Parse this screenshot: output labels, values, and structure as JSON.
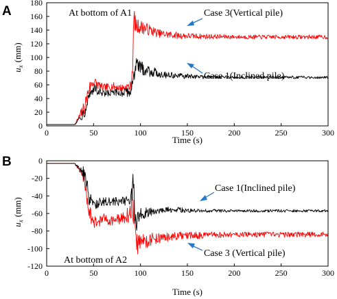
{
  "panels": [
    {
      "letter": "A"
    },
    {
      "letter": "B"
    }
  ],
  "chart_data": [
    {
      "type": "line",
      "title": "",
      "xlabel": "Time (s)",
      "ylabel_italic": "u",
      "ylabel_sub": "x",
      "ylabel_unit": "(mm)",
      "xlim": [
        0,
        300
      ],
      "ylim": [
        0,
        180
      ],
      "xticks": [
        0,
        50,
        100,
        150,
        200,
        250,
        300
      ],
      "yticks": [
        0,
        20,
        40,
        60,
        80,
        100,
        120,
        140,
        160,
        180
      ],
      "grid": false,
      "annotations": {
        "location": "At bottom of A1",
        "case_red": "Case 3(Vertical pile)",
        "case_black": "Case 1(Inclined pile)"
      },
      "series": [
        {
          "name": "Case 3(Vertical pile)",
          "color": "#ff0000",
          "x": [
            0,
            30,
            40,
            45,
            50,
            60,
            70,
            80,
            90,
            92,
            93,
            95,
            100,
            110,
            120,
            140,
            160,
            200,
            250,
            300
          ],
          "y": [
            2,
            2,
            25,
            55,
            65,
            55,
            58,
            55,
            58,
            100,
            160,
            145,
            145,
            140,
            135,
            132,
            131,
            130,
            130,
            130
          ],
          "noise": [
            0,
            0,
            12,
            10,
            8,
            6,
            6,
            6,
            8,
            15,
            14,
            12,
            10,
            8,
            6,
            5,
            4,
            3,
            3,
            3
          ]
        },
        {
          "name": "Case 1(Inclined pile)",
          "color": "#000000",
          "x": [
            0,
            30,
            40,
            45,
            50,
            60,
            70,
            80,
            90,
            92,
            95,
            100,
            110,
            120,
            140,
            160,
            200,
            250,
            300
          ],
          "y": [
            2,
            2,
            20,
            45,
            55,
            45,
            48,
            48,
            50,
            70,
            88,
            85,
            80,
            76,
            73,
            72,
            71,
            71,
            71
          ],
          "noise": [
            0,
            0,
            10,
            10,
            8,
            7,
            6,
            6,
            7,
            12,
            12,
            10,
            8,
            6,
            4,
            3,
            2,
            2,
            2
          ]
        }
      ]
    },
    {
      "type": "line",
      "title": "",
      "xlabel": "Time (s)",
      "ylabel_italic": "u",
      "ylabel_sub": "x",
      "ylabel_unit": "(mm)",
      "xlim": [
        0,
        300
      ],
      "ylim": [
        -120,
        0
      ],
      "xticks": [
        0,
        50,
        100,
        150,
        200,
        250,
        300
      ],
      "yticks": [
        -120,
        -100,
        -80,
        -60,
        -40,
        -20,
        0
      ],
      "grid": false,
      "annotations": {
        "location": "At bottom of A2",
        "case_black": "Case 1(Inclined pile)",
        "case_red": "Case 3 (Vertical pile)"
      },
      "series": [
        {
          "name": "Case 3 (Vertical pile)",
          "color": "#ff0000",
          "x": [
            0,
            30,
            40,
            45,
            50,
            60,
            70,
            80,
            90,
            92,
            95,
            100,
            110,
            120,
            140,
            160,
            200,
            250,
            300
          ],
          "y": [
            -3,
            -3,
            -20,
            -55,
            -72,
            -66,
            -68,
            -66,
            -60,
            -40,
            -95,
            -92,
            -90,
            -88,
            -86,
            -85,
            -84,
            -84,
            -84
          ],
          "noise": [
            0,
            0,
            10,
            10,
            8,
            6,
            6,
            6,
            10,
            30,
            15,
            12,
            8,
            6,
            5,
            4,
            3,
            3,
            3
          ]
        },
        {
          "name": "Case 1(Inclined pile)",
          "color": "#000000",
          "x": [
            0,
            30,
            40,
            45,
            50,
            60,
            70,
            80,
            90,
            92,
            95,
            100,
            110,
            120,
            140,
            160,
            200,
            250,
            300
          ],
          "y": [
            -3,
            -3,
            -15,
            -40,
            -50,
            -46,
            -47,
            -46,
            -44,
            -30,
            -70,
            -62,
            -58,
            -56,
            -56,
            -57,
            -57,
            -57,
            -57
          ],
          "noise": [
            0,
            0,
            8,
            10,
            6,
            5,
            5,
            5,
            8,
            20,
            12,
            8,
            5,
            4,
            3,
            2,
            1.5,
            1.5,
            1.5
          ]
        }
      ]
    }
  ]
}
